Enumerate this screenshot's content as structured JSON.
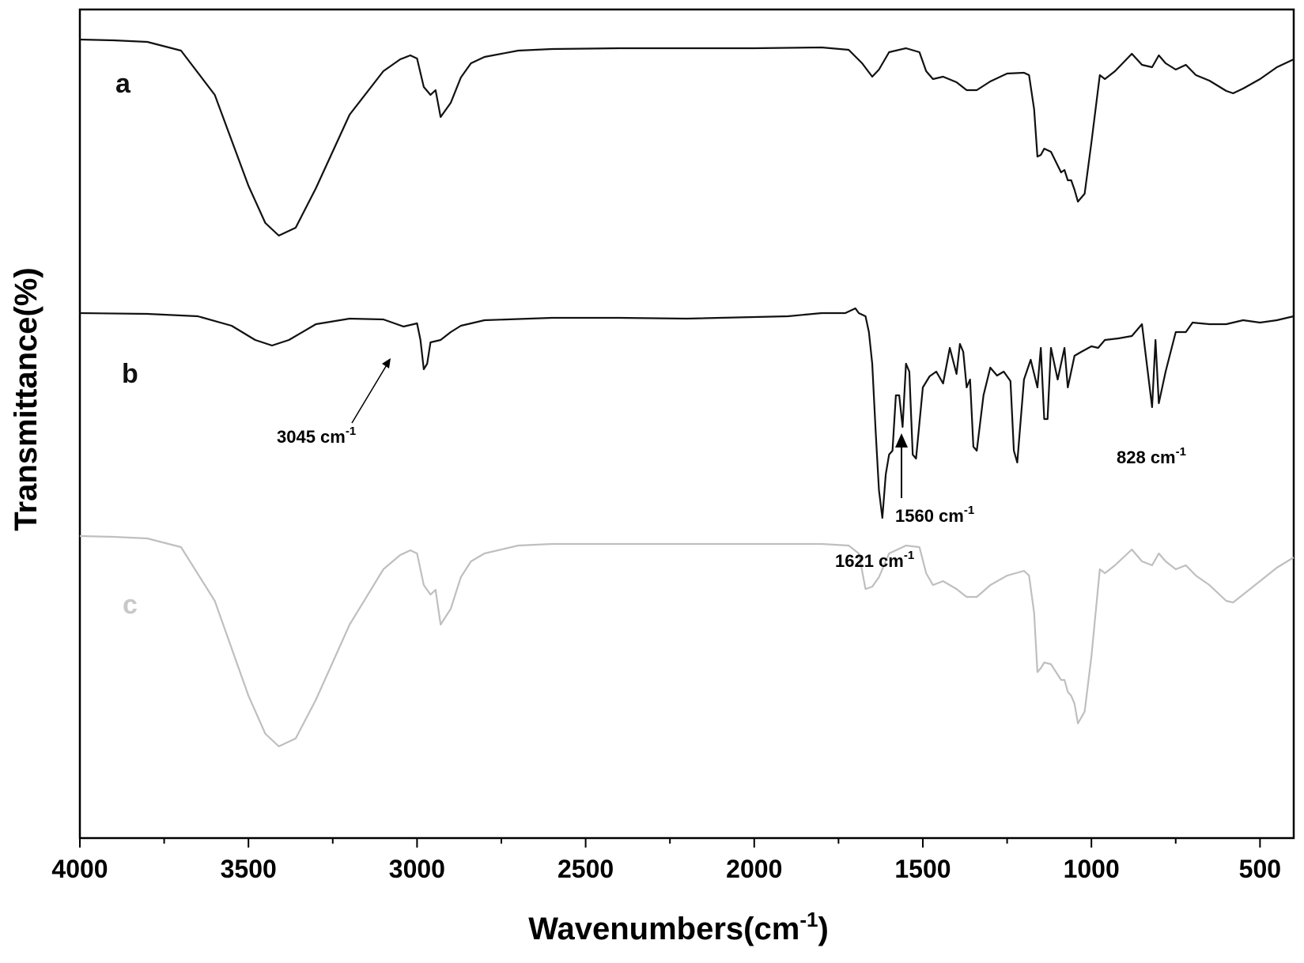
{
  "chart_data": {
    "type": "line",
    "title": "",
    "xlabel_main": "Wavenumbers(cm",
    "xlabel_sup": "-1",
    "xlabel_close": ")",
    "ylabel": "Transmittance(%)",
    "xlim": [
      4000,
      400
    ],
    "x_reversed": true,
    "x_ticks": [
      4000,
      3500,
      3000,
      2500,
      2000,
      1500,
      1000,
      500
    ],
    "x_tick_labels": [
      "4000",
      "3500",
      "3000",
      "2500",
      "2000",
      "1500",
      "1000",
      "500"
    ],
    "y_ticks_shown": false,
    "grid": false,
    "series": [
      {
        "name": "a",
        "color": "#111111",
        "baseline": 50,
        "points": [
          [
            4000,
            50
          ],
          [
            3900,
            51
          ],
          [
            3800,
            53
          ],
          [
            3700,
            64
          ],
          [
            3600,
            120
          ],
          [
            3500,
            235
          ],
          [
            3450,
            282
          ],
          [
            3410,
            298
          ],
          [
            3360,
            288
          ],
          [
            3300,
            238
          ],
          [
            3200,
            145
          ],
          [
            3100,
            90
          ],
          [
            3050,
            75
          ],
          [
            3020,
            70
          ],
          [
            3000,
            74
          ],
          [
            2980,
            110
          ],
          [
            2960,
            120
          ],
          [
            2945,
            114
          ],
          [
            2930,
            148
          ],
          [
            2900,
            130
          ],
          [
            2870,
            98
          ],
          [
            2840,
            80
          ],
          [
            2800,
            72
          ],
          [
            2700,
            64
          ],
          [
            2600,
            62
          ],
          [
            2400,
            61
          ],
          [
            2200,
            61
          ],
          [
            2000,
            61
          ],
          [
            1800,
            60
          ],
          [
            1720,
            63
          ],
          [
            1680,
            80
          ],
          [
            1650,
            97
          ],
          [
            1630,
            88
          ],
          [
            1600,
            66
          ],
          [
            1550,
            61
          ],
          [
            1510,
            66
          ],
          [
            1490,
            90
          ],
          [
            1470,
            100
          ],
          [
            1440,
            97
          ],
          [
            1400,
            104
          ],
          [
            1370,
            114
          ],
          [
            1340,
            114
          ],
          [
            1300,
            103
          ],
          [
            1250,
            93
          ],
          [
            1200,
            92
          ],
          [
            1185,
            95
          ],
          [
            1170,
            138
          ],
          [
            1160,
            198
          ],
          [
            1150,
            196
          ],
          [
            1140,
            188
          ],
          [
            1120,
            192
          ],
          [
            1090,
            218
          ],
          [
            1080,
            215
          ],
          [
            1070,
            228
          ],
          [
            1060,
            228
          ],
          [
            1050,
            240
          ],
          [
            1040,
            255
          ],
          [
            1020,
            245
          ],
          [
            1000,
            180
          ],
          [
            975,
            95
          ],
          [
            960,
            100
          ],
          [
            930,
            90
          ],
          [
            880,
            68
          ],
          [
            850,
            82
          ],
          [
            820,
            85
          ],
          [
            800,
            70
          ],
          [
            780,
            80
          ],
          [
            750,
            88
          ],
          [
            720,
            82
          ],
          [
            690,
            95
          ],
          [
            650,
            102
          ],
          [
            600,
            115
          ],
          [
            580,
            118
          ],
          [
            550,
            112
          ],
          [
            500,
            100
          ],
          [
            450,
            85
          ],
          [
            400,
            75
          ]
        ]
      },
      {
        "name": "b",
        "color": "#111111",
        "baseline": 396,
        "points": [
          [
            4000,
            396
          ],
          [
            3800,
            397
          ],
          [
            3650,
            400
          ],
          [
            3550,
            412
          ],
          [
            3480,
            430
          ],
          [
            3430,
            437
          ],
          [
            3380,
            430
          ],
          [
            3300,
            410
          ],
          [
            3200,
            403
          ],
          [
            3100,
            404
          ],
          [
            3060,
            410
          ],
          [
            3040,
            413
          ],
          [
            3000,
            409
          ],
          [
            2990,
            430
          ],
          [
            2980,
            467
          ],
          [
            2970,
            460
          ],
          [
            2960,
            433
          ],
          [
            2930,
            430
          ],
          [
            2900,
            420
          ],
          [
            2870,
            412
          ],
          [
            2800,
            405
          ],
          [
            2600,
            402
          ],
          [
            2400,
            402
          ],
          [
            2200,
            403
          ],
          [
            1900,
            400
          ],
          [
            1800,
            396
          ],
          [
            1730,
            396
          ],
          [
            1700,
            390
          ],
          [
            1690,
            396
          ],
          [
            1670,
            400
          ],
          [
            1660,
            420
          ],
          [
            1650,
            460
          ],
          [
            1640,
            545
          ],
          [
            1630,
            620
          ],
          [
            1620,
            655
          ],
          [
            1610,
            600
          ],
          [
            1600,
            575
          ],
          [
            1590,
            570
          ],
          [
            1580,
            500
          ],
          [
            1570,
            500
          ],
          [
            1560,
            540
          ],
          [
            1550,
            460
          ],
          [
            1540,
            470
          ],
          [
            1530,
            575
          ],
          [
            1520,
            580
          ],
          [
            1500,
            490
          ],
          [
            1480,
            476
          ],
          [
            1460,
            470
          ],
          [
            1440,
            485
          ],
          [
            1420,
            440
          ],
          [
            1400,
            473
          ],
          [
            1390,
            435
          ],
          [
            1380,
            445
          ],
          [
            1370,
            490
          ],
          [
            1360,
            480
          ],
          [
            1350,
            565
          ],
          [
            1340,
            570
          ],
          [
            1320,
            500
          ],
          [
            1300,
            465
          ],
          [
            1280,
            475
          ],
          [
            1260,
            470
          ],
          [
            1240,
            482
          ],
          [
            1230,
            570
          ],
          [
            1220,
            585
          ],
          [
            1200,
            480
          ],
          [
            1180,
            455
          ],
          [
            1160,
            490
          ],
          [
            1150,
            440
          ],
          [
            1140,
            530
          ],
          [
            1130,
            530
          ],
          [
            1120,
            440
          ],
          [
            1100,
            480
          ],
          [
            1080,
            440
          ],
          [
            1070,
            490
          ],
          [
            1050,
            450
          ],
          [
            1030,
            445
          ],
          [
            1000,
            438
          ],
          [
            980,
            440
          ],
          [
            960,
            430
          ],
          [
            920,
            428
          ],
          [
            880,
            425
          ],
          [
            850,
            410
          ],
          [
            820,
            515
          ],
          [
            810,
            430
          ],
          [
            800,
            510
          ],
          [
            780,
            470
          ],
          [
            750,
            420
          ],
          [
            720,
            420
          ],
          [
            700,
            408
          ],
          [
            650,
            410
          ],
          [
            600,
            410
          ],
          [
            550,
            405
          ],
          [
            500,
            408
          ],
          [
            450,
            405
          ],
          [
            400,
            400
          ]
        ]
      },
      {
        "name": "c",
        "color": "#bfbfbf",
        "baseline": 678,
        "points": [
          [
            4000,
            678
          ],
          [
            3900,
            679
          ],
          [
            3800,
            681
          ],
          [
            3700,
            692
          ],
          [
            3600,
            760
          ],
          [
            3500,
            880
          ],
          [
            3450,
            928
          ],
          [
            3410,
            944
          ],
          [
            3360,
            934
          ],
          [
            3300,
            885
          ],
          [
            3200,
            790
          ],
          [
            3100,
            720
          ],
          [
            3050,
            702
          ],
          [
            3020,
            696
          ],
          [
            3000,
            700
          ],
          [
            2980,
            740
          ],
          [
            2960,
            752
          ],
          [
            2945,
            746
          ],
          [
            2930,
            790
          ],
          [
            2900,
            770
          ],
          [
            2870,
            730
          ],
          [
            2840,
            710
          ],
          [
            2800,
            700
          ],
          [
            2700,
            690
          ],
          [
            2600,
            688
          ],
          [
            2400,
            688
          ],
          [
            2200,
            688
          ],
          [
            2000,
            688
          ],
          [
            1800,
            688
          ],
          [
            1720,
            690
          ],
          [
            1690,
            700
          ],
          [
            1670,
            745
          ],
          [
            1650,
            742
          ],
          [
            1630,
            730
          ],
          [
            1600,
            700
          ],
          [
            1550,
            690
          ],
          [
            1510,
            692
          ],
          [
            1490,
            725
          ],
          [
            1470,
            740
          ],
          [
            1440,
            735
          ],
          [
            1400,
            745
          ],
          [
            1370,
            755
          ],
          [
            1340,
            755
          ],
          [
            1300,
            740
          ],
          [
            1250,
            728
          ],
          [
            1200,
            722
          ],
          [
            1185,
            728
          ],
          [
            1170,
            775
          ],
          [
            1160,
            850
          ],
          [
            1150,
            845
          ],
          [
            1140,
            838
          ],
          [
            1120,
            840
          ],
          [
            1090,
            860
          ],
          [
            1080,
            860
          ],
          [
            1070,
            875
          ],
          [
            1060,
            880
          ],
          [
            1050,
            890
          ],
          [
            1040,
            915
          ],
          [
            1020,
            900
          ],
          [
            1000,
            830
          ],
          [
            975,
            720
          ],
          [
            960,
            725
          ],
          [
            930,
            715
          ],
          [
            880,
            695
          ],
          [
            850,
            710
          ],
          [
            820,
            715
          ],
          [
            800,
            700
          ],
          [
            780,
            710
          ],
          [
            750,
            720
          ],
          [
            720,
            715
          ],
          [
            690,
            728
          ],
          [
            650,
            740
          ],
          [
            600,
            760
          ],
          [
            580,
            762
          ],
          [
            550,
            752
          ],
          [
            500,
            735
          ],
          [
            450,
            718
          ],
          [
            400,
            705
          ]
        ]
      }
    ],
    "series_labels": [
      {
        "text": "a",
        "color": "#111111"
      },
      {
        "text": "b",
        "color": "#111111"
      },
      {
        "text": "c",
        "color": "#c8c8c8"
      }
    ],
    "annotations": [
      {
        "text": "3045 cm",
        "sup": "-1",
        "x": 3045
      },
      {
        "text": "1621 cm",
        "sup": "-1",
        "x": 1621
      },
      {
        "text": "1560 cm",
        "sup": "-1",
        "x": 1560
      },
      {
        "text": "828 cm",
        "sup": "-1",
        "x": 828
      }
    ]
  }
}
